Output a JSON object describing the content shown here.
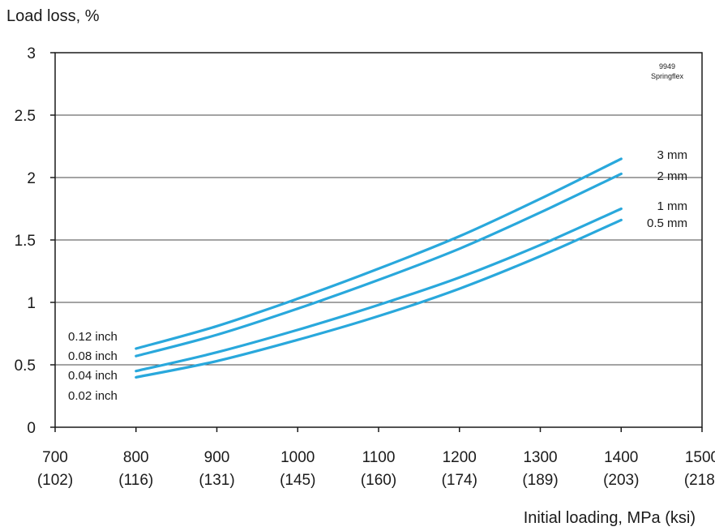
{
  "chart_data": {
    "type": "line",
    "title": "",
    "ylabel": "Load loss, %",
    "xlabel": "Initial loading, MPa (ksi)",
    "note": [
      "9949",
      "Springflex"
    ],
    "xlim": [
      700,
      1500
    ],
    "ylim": [
      0,
      3
    ],
    "x_ticks": [
      {
        "value": 700,
        "label": "700",
        "sublabel": "(102)"
      },
      {
        "value": 800,
        "label": "800",
        "sublabel": "(116)"
      },
      {
        "value": 900,
        "label": "900",
        "sublabel": "(131)"
      },
      {
        "value": 1000,
        "label": "1000",
        "sublabel": "(145)"
      },
      {
        "value": 1100,
        "label": "1100",
        "sublabel": "(160)"
      },
      {
        "value": 1200,
        "label": "1200",
        "sublabel": "(174)"
      },
      {
        "value": 1300,
        "label": "1300",
        "sublabel": "(189)"
      },
      {
        "value": 1400,
        "label": "1400",
        "sublabel": "(203)"
      },
      {
        "value": 1500,
        "label": "1500",
        "sublabel": "(218)"
      }
    ],
    "y_ticks": [
      {
        "value": 0,
        "label": "0"
      },
      {
        "value": 0.5,
        "label": "0.5"
      },
      {
        "value": 1,
        "label": "1"
      },
      {
        "value": 1.5,
        "label": "1.5"
      },
      {
        "value": 2,
        "label": "2"
      },
      {
        "value": 2.5,
        "label": "2.5"
      },
      {
        "value": 3,
        "label": "3"
      }
    ],
    "grid": "horizontal",
    "line_color": "#29a8dc",
    "series": [
      {
        "name": "3 mm",
        "alt_name": "0.12 inch",
        "x": [
          800,
          900,
          1000,
          1100,
          1200,
          1300,
          1400
        ],
        "y": [
          0.63,
          0.81,
          1.03,
          1.27,
          1.53,
          1.83,
          2.15
        ]
      },
      {
        "name": "2 mm",
        "alt_name": "0.08 inch",
        "x": [
          800,
          900,
          1000,
          1100,
          1200,
          1300,
          1400
        ],
        "y": [
          0.57,
          0.74,
          0.95,
          1.18,
          1.43,
          1.72,
          2.03
        ]
      },
      {
        "name": "1 mm",
        "alt_name": "0.04 inch",
        "x": [
          800,
          900,
          1000,
          1100,
          1200,
          1300,
          1400
        ],
        "y": [
          0.45,
          0.6,
          0.78,
          0.98,
          1.2,
          1.46,
          1.75
        ]
      },
      {
        "name": "0.5 mm",
        "alt_name": "0.02 inch",
        "x": [
          800,
          900,
          1000,
          1100,
          1200,
          1300,
          1400
        ],
        "y": [
          0.4,
          0.53,
          0.7,
          0.89,
          1.11,
          1.37,
          1.66
        ]
      }
    ]
  }
}
